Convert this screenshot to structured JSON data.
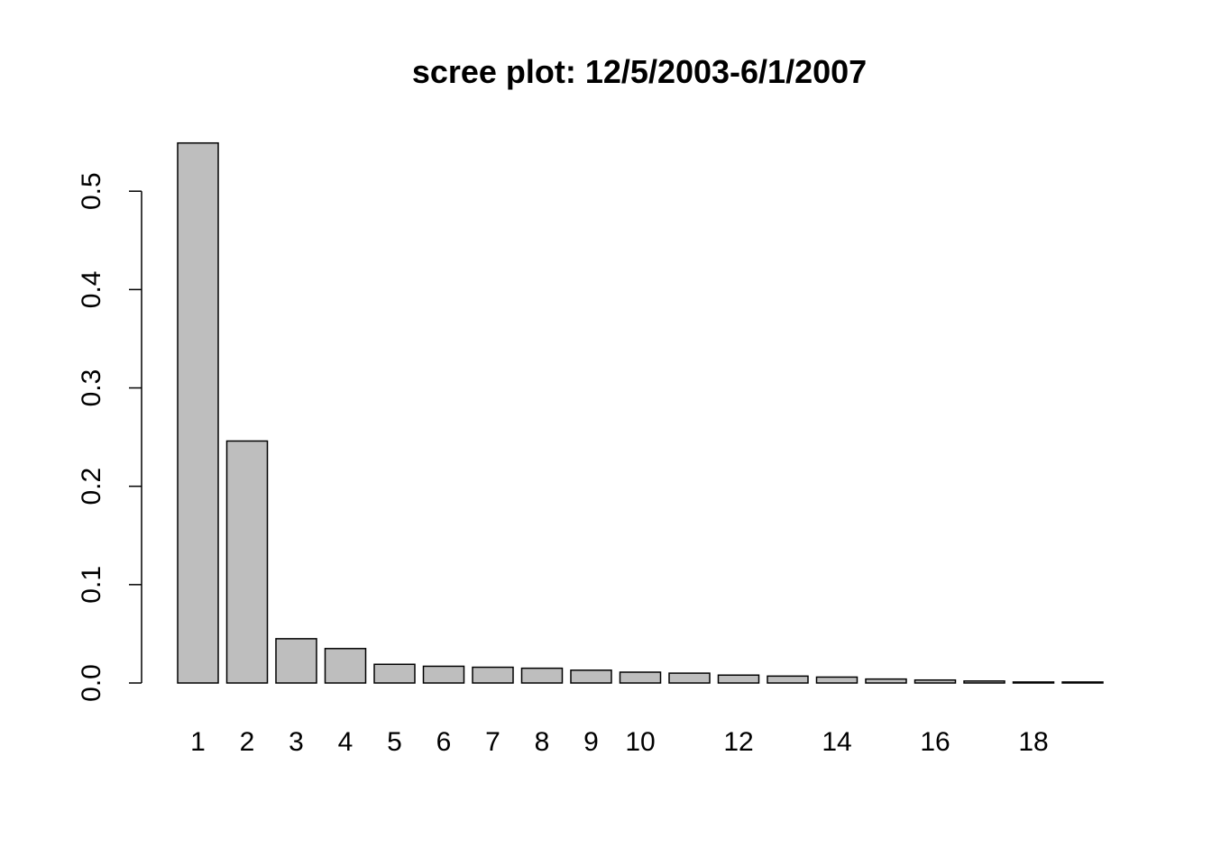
{
  "chart_data": {
    "type": "bar",
    "title": "scree plot: 12/5/2003-6/1/2007",
    "xlabel": "",
    "ylabel": "",
    "categories": [
      "1",
      "2",
      "3",
      "4",
      "5",
      "6",
      "7",
      "8",
      "9",
      "10",
      "11",
      "12",
      "13",
      "14",
      "15",
      "16",
      "17",
      "18",
      "19"
    ],
    "x_tick_labels_shown": [
      "1",
      "2",
      "3",
      "4",
      "5",
      "6",
      "7",
      "8",
      "9",
      "10",
      "12",
      "14",
      "16",
      "18"
    ],
    "values": [
      0.549,
      0.246,
      0.045,
      0.035,
      0.019,
      0.017,
      0.016,
      0.015,
      0.013,
      0.011,
      0.01,
      0.008,
      0.007,
      0.006,
      0.004,
      0.003,
      0.002,
      0.001,
      0.001
    ],
    "y_ticks": [
      "0.0",
      "0.1",
      "0.2",
      "0.3",
      "0.4",
      "0.5"
    ],
    "ylim": [
      0,
      0.55
    ],
    "grid": false,
    "legend": "none",
    "bar_color": "#bebebe",
    "bar_border_color": "#000000"
  }
}
